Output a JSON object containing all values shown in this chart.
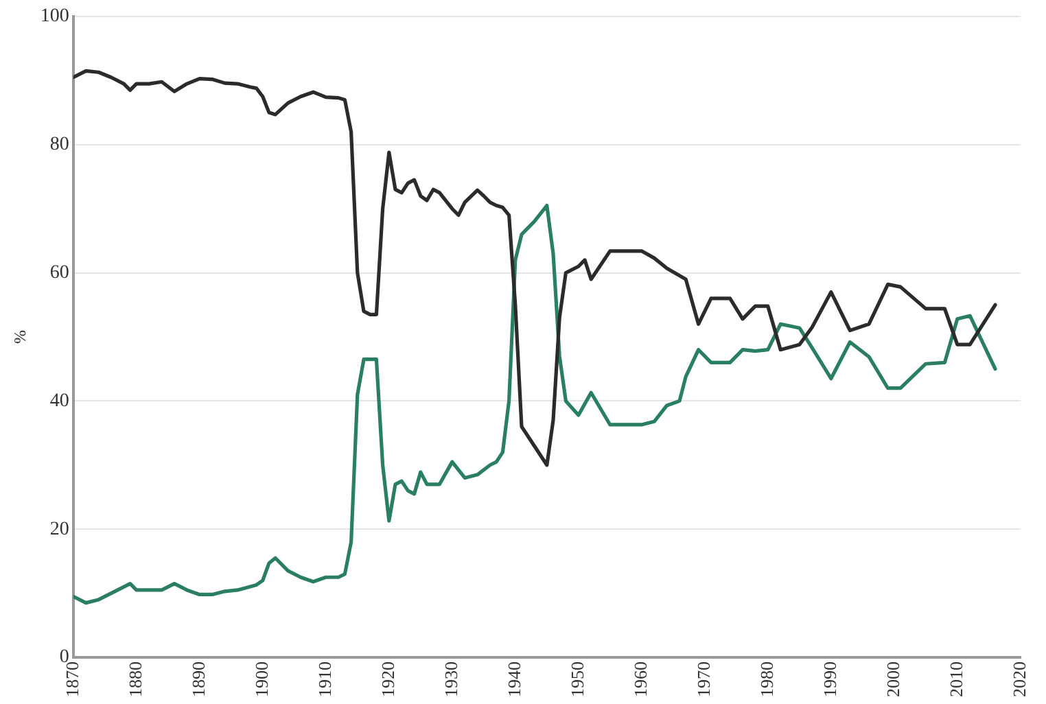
{
  "chart_data": {
    "type": "line",
    "ylabel": "%",
    "xlim": [
      1870,
      2020
    ],
    "xticks": [
      1870,
      1880,
      1890,
      1900,
      1910,
      1920,
      1930,
      1940,
      1950,
      1960,
      1970,
      1980,
      1990,
      2000,
      2010,
      2020
    ],
    "ylim": [
      0,
      100
    ],
    "yticks": [
      0,
      20,
      40,
      60,
      80,
      100
    ],
    "grid": "y",
    "legend": false,
    "marker": "none",
    "line_style": "solid",
    "series": [
      {
        "color": "#2b2b2b",
        "x": [
          1870,
          1872,
          1874,
          1876,
          1878,
          1879,
          1880,
          1882,
          1884,
          1886,
          1888,
          1890,
          1892,
          1894,
          1896,
          1898,
          1899,
          1900,
          1901,
          1902,
          1904,
          1906,
          1908,
          1910,
          1912,
          1913,
          1914,
          1915,
          1916,
          1917,
          1918,
          1919,
          1920,
          1921,
          1922,
          1923,
          1924,
          1925,
          1926,
          1927,
          1928,
          1930,
          1931,
          1932,
          1934,
          1935,
          1936,
          1937,
          1938,
          1939,
          1940,
          1941,
          1943,
          1945,
          1946,
          1947,
          1948,
          1950,
          1951,
          1952,
          1955,
          1960,
          1962,
          1964,
          1967,
          1969,
          1971,
          1974,
          1976,
          1978,
          1980,
          1982,
          1985,
          1987,
          1990,
          1993,
          1996,
          1999,
          2001,
          2005,
          2008,
          2010,
          2012,
          2016
        ],
        "values": [
          90.5,
          91.5,
          91.3,
          90.5,
          89.5,
          88.5,
          89.5,
          89.5,
          89.8,
          88.3,
          89.5,
          90.3,
          90.2,
          89.6,
          89.5,
          89,
          88.8,
          87.5,
          85,
          84.7,
          86.5,
          87.5,
          88.2,
          87.4,
          87.3,
          87,
          82,
          60,
          54,
          53.5,
          53.5,
          70,
          78.8,
          73,
          72.5,
          74,
          74.5,
          72,
          71.3,
          73,
          72.5,
          70,
          69,
          71,
          72.9,
          72,
          71,
          70.5,
          70.2,
          69,
          55,
          36,
          33,
          30,
          37,
          53,
          60,
          61,
          62,
          59,
          63.4,
          63.4,
          62.3,
          60.7,
          59,
          52,
          56,
          56,
          52.8,
          54.8,
          54.8,
          48,
          48.8,
          51.5,
          57,
          51,
          52,
          58.2,
          57.8,
          54.4,
          54.4,
          48.8,
          48.8,
          55
        ]
      },
      {
        "color": "#2a7f62",
        "x": [
          1870,
          1872,
          1874,
          1876,
          1879,
          1880,
          1884,
          1886,
          1888,
          1890,
          1892,
          1894,
          1896,
          1899,
          1900,
          1901,
          1902,
          1904,
          1906,
          1908,
          1910,
          1912,
          1913,
          1914,
          1915,
          1916,
          1917,
          1918,
          1919,
          1920,
          1921,
          1922,
          1923,
          1924,
          1925,
          1926,
          1928,
          1930,
          1932,
          1934,
          1936,
          1937,
          1938,
          1939,
          1940,
          1941,
          1943,
          1945,
          1946,
          1947,
          1948,
          1950,
          1952,
          1955,
          1960,
          1962,
          1964,
          1966,
          1967,
          1969,
          1971,
          1974,
          1976,
          1978,
          1980,
          1982,
          1985,
          1987,
          1990,
          1993,
          1996,
          1999,
          2001,
          2005,
          2008,
          2010,
          2012,
          2016
        ],
        "values": [
          9.5,
          8.5,
          9,
          10,
          11.5,
          10.5,
          10.5,
          11.5,
          10.5,
          9.8,
          9.8,
          10.3,
          10.5,
          11.3,
          12,
          14.7,
          15.5,
          13.5,
          12.5,
          11.8,
          12.5,
          12.5,
          13,
          18,
          41,
          46.5,
          46.5,
          46.5,
          30,
          21.3,
          27,
          27.5,
          26,
          25.5,
          28.9,
          27,
          27,
          30.5,
          28,
          28.5,
          30,
          30.5,
          32,
          40,
          62,
          66,
          68,
          70.5,
          63,
          47,
          40,
          37.8,
          41.3,
          36.3,
          36.3,
          36.8,
          39.3,
          40,
          43.8,
          48,
          46,
          46,
          48,
          47.8,
          48,
          52,
          51.4,
          48.3,
          43.5,
          49.2,
          46.9,
          42,
          42,
          45.8,
          46,
          52.8,
          53.3,
          45
        ]
      }
    ]
  }
}
